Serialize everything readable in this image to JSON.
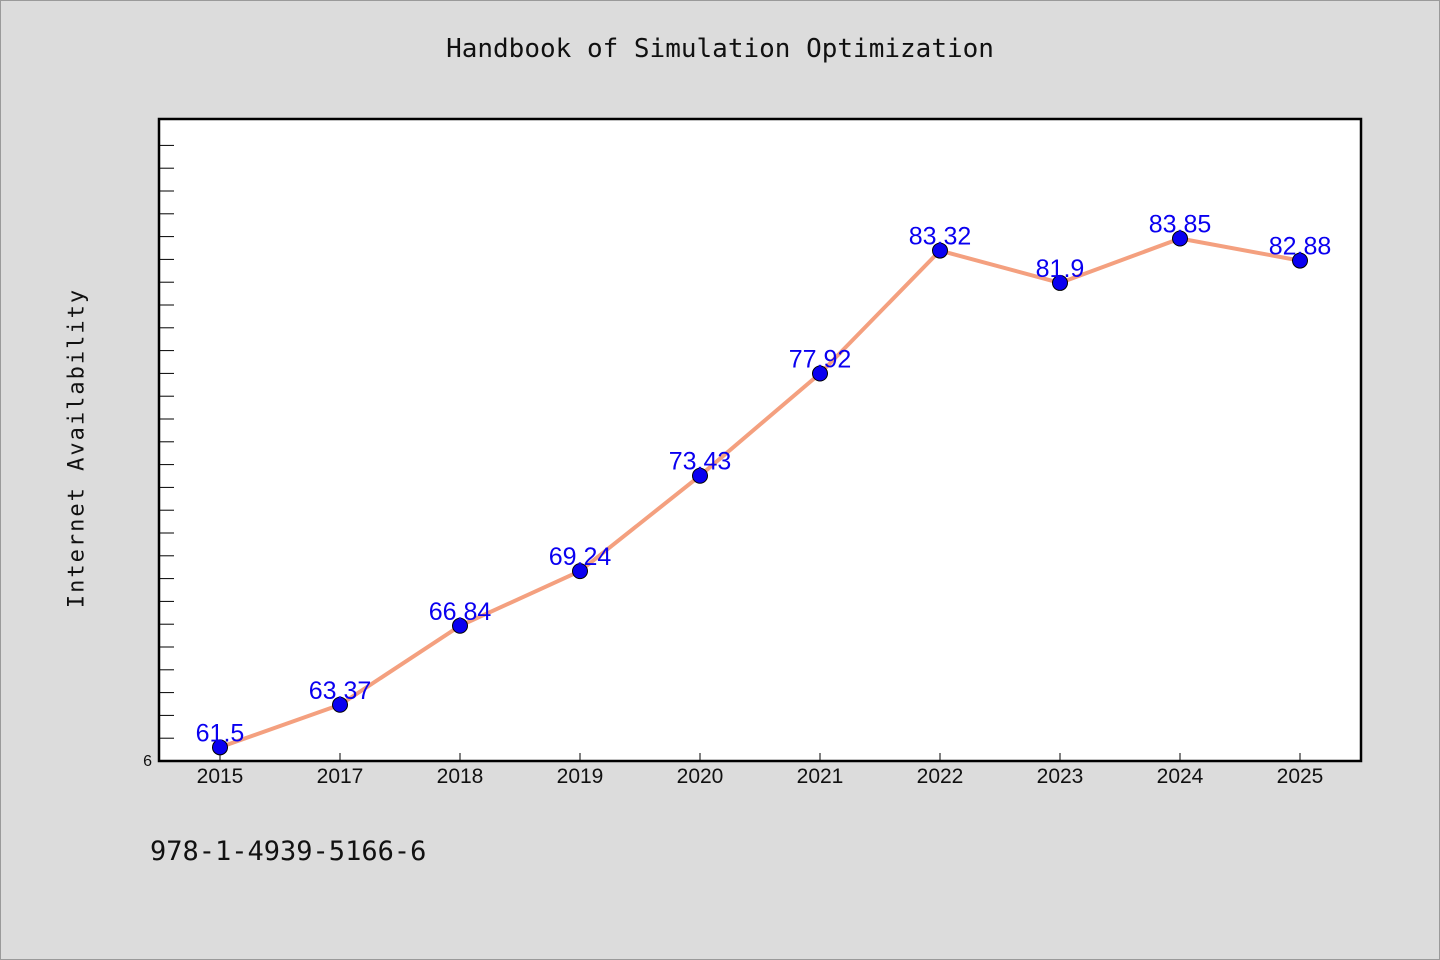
{
  "chart_data": {
    "type": "line",
    "title": "Handbook of Simulation Optimization",
    "xlabel": "",
    "ylabel": "Internet Availability",
    "categories": [
      "2015",
      "2017",
      "2018",
      "2019",
      "2020",
      "2021",
      "2022",
      "2023",
      "2024",
      "2025"
    ],
    "values": [
      61.5,
      63.37,
      66.84,
      69.24,
      73.43,
      77.92,
      83.32,
      81.9,
      83.85,
      82.88
    ],
    "data_labels": [
      "61.5",
      "63.37",
      "66.84",
      "69.24",
      "73.43",
      "77.92",
      "83.32",
      "81.9",
      "83.85",
      "82.88"
    ],
    "y_tick_label": "6",
    "ylim": [
      60.9,
      89.1
    ],
    "grid": false,
    "legend": "none",
    "line_color": "#f4a07f",
    "marker_color": "#0a00f0",
    "label_color": "#0a00f0"
  },
  "footer": {
    "identifier": "978-1-4939-5166-6"
  }
}
